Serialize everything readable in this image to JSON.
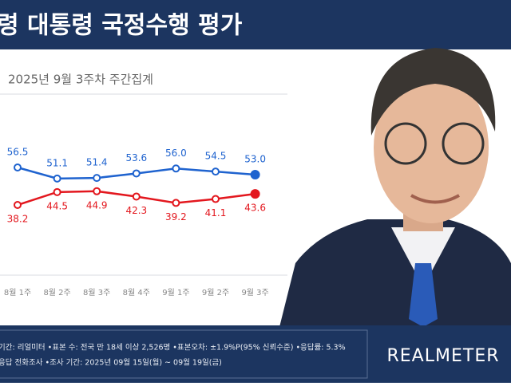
{
  "header": {
    "title": "령 대통령 국정수행 평가"
  },
  "chart_data": {
    "type": "line",
    "subtitle": "2025년 9월 3주차 주간집계",
    "categories": [
      "8월 1주",
      "8월 2주",
      "8월 3주",
      "8월 4주",
      "9월 1주",
      "9월 2주",
      "9월 3주"
    ],
    "series": [
      {
        "color": "#1f63cf",
        "values": [
          56.5,
          51.1,
          51.4,
          53.6,
          56.0,
          54.5,
          53.0
        ],
        "value_labels": [
          "56.5",
          "51.1",
          "51.4",
          "53.6",
          "56.0",
          "54.5",
          "53.0"
        ]
      },
      {
        "color": "#e3171e",
        "values": [
          38.2,
          44.5,
          44.9,
          42.3,
          39.2,
          41.1,
          43.6
        ]
      }
    ]
  },
  "footer": {
    "lines": [
      "기간: 리얼미터 •표본 수: 전국 만 18세 이상 2,526명 •표본오차: ±1.9%P(95% 신뢰수준) •응답률: 5.3%",
      "응답 전화조사 •조사 기간: 2025년 09월 15일(월) ~ 09월 19일(금)"
    ],
    "brand": "REALMETER"
  }
}
